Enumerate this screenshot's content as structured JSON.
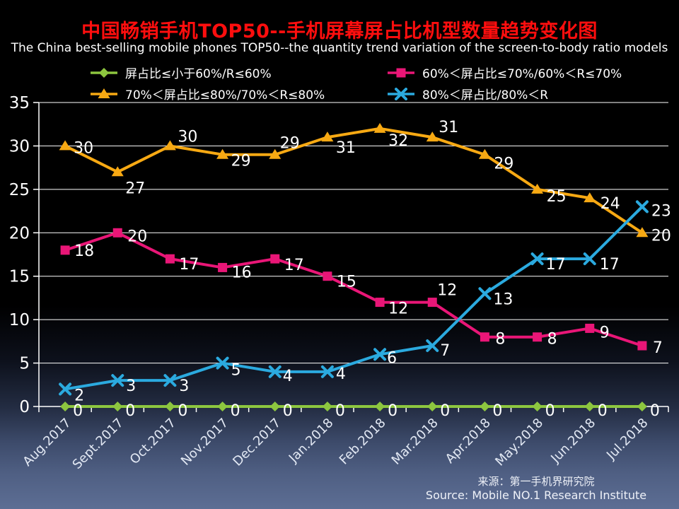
{
  "header": {
    "title_zh": "中国畅销手机TOP50--手机屏幕屏占比机型数量趋势变化图",
    "subtitle_en": "The China best-selling mobile phones TOP50--the quantity trend variation of the screen-to-body ratio models"
  },
  "legend": {
    "items": [
      {
        "label": "屏占比≤小于60%/R≤60%",
        "marker": "diamond",
        "color": "#8DC63F"
      },
      {
        "label": "60%＜屏占比≤70%/60%＜R≤70%",
        "marker": "square",
        "color": "#E91677"
      },
      {
        "label": "70%＜屏占比≤80%/70%＜R≤80%",
        "marker": "triangle",
        "color": "#F7A913"
      },
      {
        "label": "80%＜屏占比/80%＜R",
        "marker": "x",
        "color": "#2BAADF"
      }
    ]
  },
  "chart_data": {
    "type": "line",
    "title": "中国畅销手机TOP50--手机屏幕屏占比机型数量趋势变化图",
    "subtitle": "The China best-selling mobile phones TOP50--the quantity trend variation of the screen-to-body ratio models",
    "categories": [
      "Aug.2017",
      "Sept.2017",
      "Oct.2017",
      "Nov.2017",
      "Dec.2017",
      "Jan.2018",
      "Feb.2018",
      "Mar.2018",
      "Apr.2018",
      "May.2018",
      "Jun.2018",
      "Jul.2018"
    ],
    "series": [
      {
        "name": "屏占比≤小于60%/R≤60%",
        "marker": "diamond",
        "color": "#8DC63F",
        "values": [
          0,
          0,
          0,
          0,
          0,
          0,
          0,
          0,
          0,
          0,
          0,
          0
        ]
      },
      {
        "name": "60%＜屏占比≤70%/60%＜R≤70%",
        "marker": "square",
        "color": "#E91677",
        "values": [
          18,
          20,
          17,
          16,
          17,
          15,
          12,
          12,
          8,
          8,
          9,
          7
        ]
      },
      {
        "name": "70%＜屏占比≤80%/70%＜R≤80%",
        "marker": "triangle",
        "color": "#F7A913",
        "values": [
          30,
          27,
          30,
          29,
          29,
          31,
          32,
          31,
          29,
          25,
          24,
          20
        ]
      },
      {
        "name": "80%＜屏占比/80%＜R",
        "marker": "x",
        "color": "#2BAADF",
        "values": [
          2,
          3,
          3,
          5,
          4,
          4,
          6,
          7,
          13,
          17,
          17,
          23
        ]
      }
    ],
    "ylim": [
      0,
      35
    ],
    "yticks": [
      0,
      5,
      10,
      15,
      20,
      25,
      30,
      35
    ],
    "grid": true,
    "legend_position": "top",
    "data_labels": true,
    "colors": {
      "title": "#ff0e0e",
      "gridline": "#ffffff",
      "axis_text": "#ffffff",
      "xaxis_text": "#e3e9f4",
      "data_label": "#ffffff"
    }
  },
  "source": {
    "line1": "来源：第一手机界研究院",
    "line2": "Source: Mobile NO.1 Research Institute"
  }
}
